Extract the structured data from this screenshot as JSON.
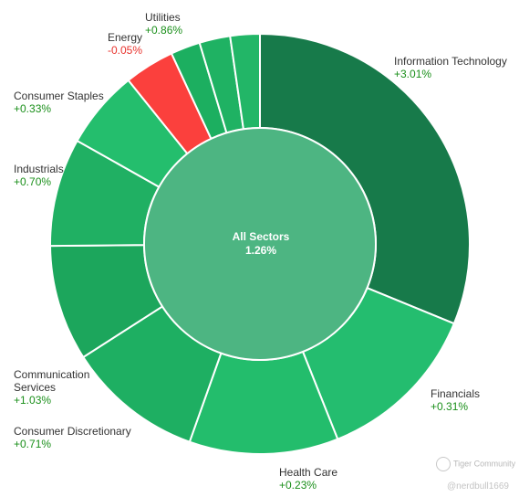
{
  "chart_data": {
    "type": "pie",
    "center_label": "All Sectors",
    "center_value": "1.26%",
    "center_color": "#4db582",
    "slices": [
      {
        "name": "Information Technology",
        "change": "+3.01%",
        "weight": 31.5,
        "color": "#177a4a",
        "change_color": "#1a8f1a"
      },
      {
        "name": "Financials",
        "change": "+0.31%",
        "weight": 12.9,
        "color": "#24bd6f",
        "change_color": "#1a8f1a"
      },
      {
        "name": "Health Care",
        "change": "+0.23%",
        "weight": 11.6,
        "color": "#23bd6c",
        "change_color": "#1a8f1a"
      },
      {
        "name": "Consumer Discretionary",
        "change": "+0.71%",
        "weight": 10.6,
        "color": "#1eaf62",
        "change_color": "#1a8f1a"
      },
      {
        "name": "Communication Services",
        "change": "+1.03%",
        "weight": 9.0,
        "color": "#1ca65c",
        "change_color": "#1a8f1a"
      },
      {
        "name": "Industrials",
        "change": "+0.70%",
        "weight": 8.4,
        "color": "#20b063",
        "change_color": "#1a8f1a"
      },
      {
        "name": "Consumer Staples",
        "change": "+0.33%",
        "weight": 6.1,
        "color": "#24be6d",
        "change_color": "#1a8f1a"
      },
      {
        "name": "Energy",
        "change": "-0.05%",
        "weight": 3.9,
        "color": "#fb403d",
        "change_color": "#e8322c"
      },
      {
        "name": "Utilities",
        "change": "+0.86%",
        "weight": 2.3,
        "color": "#1caf60",
        "change_color": "#1a8f1a"
      },
      {
        "name": "",
        "change": "",
        "weight": 2.4,
        "color": "#1fb263",
        "change_color": ""
      },
      {
        "name": "",
        "change": "",
        "weight": 2.3,
        "color": "#22b667",
        "change_color": ""
      }
    ]
  },
  "watermark": {
    "brand": "Tiger Community",
    "user": "@nerdbull1669"
  }
}
